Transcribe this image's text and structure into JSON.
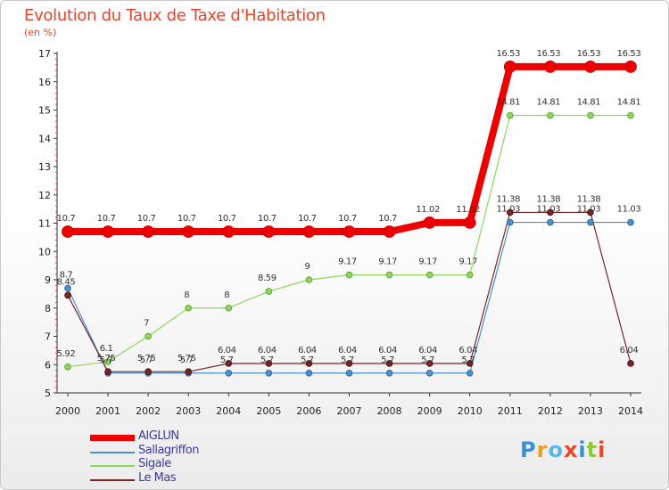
{
  "title": "Evolution du Taux de Taxe d'Habitation",
  "subtitle": "(en %)",
  "brand": "Proxiti",
  "chart_data": {
    "type": "line",
    "title": "Evolution du Taux de Taxe d'Habitation",
    "ylabel": "(en %)",
    "xlabel": "",
    "ylim": [
      5,
      17
    ],
    "yticks": [
      "5",
      "6",
      "7",
      "8",
      "9",
      "10",
      "11",
      "12",
      "13",
      "14",
      "15",
      "16",
      "17"
    ],
    "x": [
      "2000",
      "2001",
      "2002",
      "2003",
      "2004",
      "2005",
      "2006",
      "2007",
      "2008",
      "2009",
      "2010",
      "2011",
      "2012",
      "2013",
      "2014"
    ],
    "series": [
      {
        "name": "AIGLUN",
        "color": "#ee0000",
        "values": [
          10.7,
          10.7,
          10.7,
          10.7,
          10.7,
          10.7,
          10.7,
          10.7,
          10.7,
          11.02,
          11.02,
          16.53,
          16.53,
          16.53,
          16.53
        ],
        "labels": [
          "10.7",
          "10.7",
          "10.7",
          "10.7",
          "10.7",
          "10.7",
          "10.7",
          "10.7",
          "10.7",
          "11.02",
          "11.02",
          "16.53",
          "16.53",
          "16.53",
          "16.53"
        ]
      },
      {
        "name": "Sallagriffon",
        "color": "#4a90cc",
        "values": [
          8.7,
          5.7,
          5.7,
          5.7,
          5.7,
          5.7,
          5.7,
          5.7,
          5.7,
          5.7,
          5.7,
          11.03,
          11.03,
          11.03,
          11.03
        ],
        "labels": [
          "8.7",
          "5.7",
          "5.7",
          "5.7",
          "5.7",
          "5.7",
          "5.7",
          "5.7",
          "5.7",
          "5.7",
          "5.7",
          "11.03",
          "11.03",
          "11.03",
          "11.03"
        ]
      },
      {
        "name": "Sigale",
        "color": "#8fd65c",
        "values": [
          5.92,
          6.1,
          7,
          8,
          8,
          8.59,
          9,
          9.17,
          9.17,
          9.17,
          9.17,
          14.81,
          14.81,
          14.81,
          14.81
        ],
        "labels": [
          "5.92",
          "6.1",
          "7",
          "8",
          "8",
          "8.59",
          "9",
          "9.17",
          "9.17",
          "9.17",
          "9.17",
          "14.81",
          "14.81",
          "14.81",
          "14.81"
        ]
      },
      {
        "name": "Le Mas",
        "color": "#7a2424",
        "values": [
          8.45,
          5.75,
          5.75,
          5.75,
          6.04,
          6.04,
          6.04,
          6.04,
          6.04,
          6.04,
          6.04,
          11.38,
          11.38,
          11.38,
          6.04
        ],
        "labels": [
          "8.45",
          "5.75",
          "5.75",
          "5.75",
          "6.04",
          "6.04",
          "6.04",
          "6.04",
          "6.04",
          "6.04",
          "6.04",
          "11.38",
          "11.38",
          "11.38",
          "6.04"
        ]
      }
    ],
    "legend": "bottom-left",
    "grid": false
  }
}
